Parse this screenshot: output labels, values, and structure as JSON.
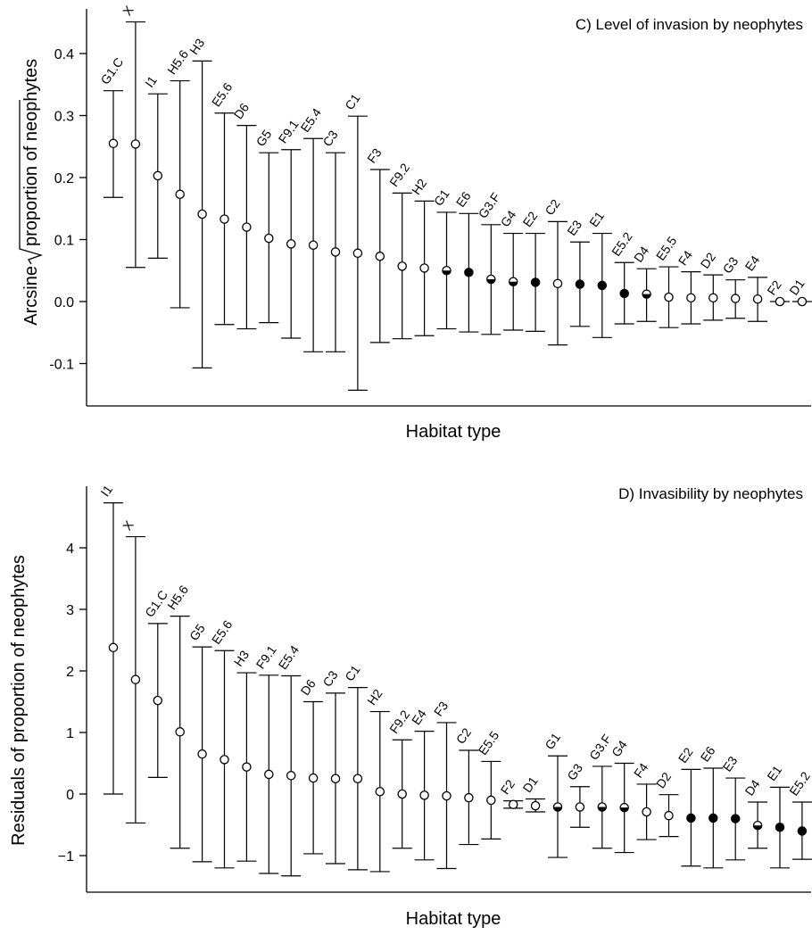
{
  "chart_data": [
    {
      "type": "scatter",
      "title": "C) Level of invasion by neophytes",
      "xlabel": "Habitat type",
      "ylabel_prefix": "Arcsine",
      "ylabel_root": "proportion of neophytes",
      "ylim": [
        -0.16,
        0.48
      ],
      "yticks": [
        0.4,
        0.3,
        0.2,
        0.1,
        0.0,
        -0.1
      ],
      "ytick_labels": [
        "0.4",
        "0.3",
        "0.2",
        "0.1",
        "0.0",
        "-0.1"
      ],
      "grid": false,
      "marker_legend": [
        "open",
        "half",
        "filled"
      ],
      "points": [
        {
          "label": "G1.C",
          "y": 0.255,
          "lo": 0.168,
          "hi": 0.34,
          "marker": "open"
        },
        {
          "label": "X",
          "y": 0.254,
          "lo": 0.055,
          "hi": 0.451,
          "marker": "open"
        },
        {
          "label": "I1",
          "y": 0.203,
          "lo": 0.07,
          "hi": 0.335,
          "marker": "open"
        },
        {
          "label": "H5.6",
          "y": 0.173,
          "lo": -0.01,
          "hi": 0.356,
          "marker": "open"
        },
        {
          "label": "H3",
          "y": 0.141,
          "lo": -0.107,
          "hi": 0.388,
          "marker": "open"
        },
        {
          "label": "E5.6",
          "y": 0.133,
          "lo": -0.037,
          "hi": 0.304,
          "marker": "open"
        },
        {
          "label": "D6",
          "y": 0.12,
          "lo": -0.044,
          "hi": 0.284,
          "marker": "open"
        },
        {
          "label": "G5",
          "y": 0.102,
          "lo": -0.034,
          "hi": 0.24,
          "marker": "open"
        },
        {
          "label": "F9.1",
          "y": 0.093,
          "lo": -0.059,
          "hi": 0.245,
          "marker": "open"
        },
        {
          "label": "E5.4",
          "y": 0.091,
          "lo": -0.081,
          "hi": 0.263,
          "marker": "open"
        },
        {
          "label": "C3",
          "y": 0.08,
          "lo": -0.081,
          "hi": 0.24,
          "marker": "open"
        },
        {
          "label": "C1",
          "y": 0.078,
          "lo": -0.143,
          "hi": 0.299,
          "marker": "open"
        },
        {
          "label": "F3",
          "y": 0.073,
          "lo": -0.066,
          "hi": 0.213,
          "marker": "open"
        },
        {
          "label": "F9.2",
          "y": 0.057,
          "lo": -0.06,
          "hi": 0.175,
          "marker": "open"
        },
        {
          "label": "H2",
          "y": 0.054,
          "lo": -0.055,
          "hi": 0.162,
          "marker": "open"
        },
        {
          "label": "G1",
          "y": 0.05,
          "lo": -0.044,
          "hi": 0.144,
          "marker": "half"
        },
        {
          "label": "E6",
          "y": 0.047,
          "lo": -0.049,
          "hi": 0.142,
          "marker": "filled"
        },
        {
          "label": "G3.F",
          "y": 0.036,
          "lo": -0.053,
          "hi": 0.124,
          "marker": "half"
        },
        {
          "label": "G4",
          "y": 0.032,
          "lo": -0.046,
          "hi": 0.11,
          "marker": "half"
        },
        {
          "label": "E2",
          "y": 0.031,
          "lo": -0.048,
          "hi": 0.11,
          "marker": "filled"
        },
        {
          "label": "C2",
          "y": 0.029,
          "lo": -0.07,
          "hi": 0.129,
          "marker": "open"
        },
        {
          "label": "E3",
          "y": 0.028,
          "lo": -0.04,
          "hi": 0.096,
          "marker": "filled"
        },
        {
          "label": "E1",
          "y": 0.026,
          "lo": -0.058,
          "hi": 0.11,
          "marker": "filled"
        },
        {
          "label": "E5.2",
          "y": 0.013,
          "lo": -0.036,
          "hi": 0.063,
          "marker": "filled"
        },
        {
          "label": "D4",
          "y": 0.012,
          "lo": -0.032,
          "hi": 0.053,
          "marker": "half"
        },
        {
          "label": "E5.5",
          "y": 0.007,
          "lo": -0.042,
          "hi": 0.056,
          "marker": "open"
        },
        {
          "label": "F4",
          "y": 0.006,
          "lo": -0.036,
          "hi": 0.048,
          "marker": "open"
        },
        {
          "label": "D2",
          "y": 0.006,
          "lo": -0.03,
          "hi": 0.043,
          "marker": "open"
        },
        {
          "label": "G3",
          "y": 0.005,
          "lo": -0.027,
          "hi": 0.035,
          "marker": "open"
        },
        {
          "label": "E4",
          "y": 0.004,
          "lo": -0.032,
          "hi": 0.039,
          "marker": "open"
        },
        {
          "label": "F2",
          "y": 0.0,
          "lo": 0.0,
          "hi": 0.0,
          "marker": "open"
        },
        {
          "label": "D1",
          "y": 0.0,
          "lo": 0.0,
          "hi": 0.0,
          "marker": "open"
        }
      ]
    },
    {
      "type": "scatter",
      "title": "D) Invasibility by neophytes",
      "xlabel": "Habitat type",
      "ylabel": "Residuals of proportion of neophytes",
      "ylim": [
        -1.6,
        5.0
      ],
      "yticks": [
        4,
        3,
        2,
        1,
        0,
        -1
      ],
      "ytick_labels": [
        "4",
        "3",
        "2",
        "1",
        "0",
        "−1"
      ],
      "grid": false,
      "points": [
        {
          "label": "I1",
          "y": 2.38,
          "lo": 0.0,
          "hi": 4.73,
          "marker": "open"
        },
        {
          "label": "X",
          "y": 1.86,
          "lo": -0.47,
          "hi": 4.18,
          "marker": "open"
        },
        {
          "label": "G1.C",
          "y": 1.52,
          "lo": 0.27,
          "hi": 2.77,
          "marker": "open"
        },
        {
          "label": "H5.6",
          "y": 1.01,
          "lo": -0.88,
          "hi": 2.89,
          "marker": "open"
        },
        {
          "label": "G5",
          "y": 0.65,
          "lo": -1.1,
          "hi": 2.39,
          "marker": "open"
        },
        {
          "label": "E5.6",
          "y": 0.56,
          "lo": -1.2,
          "hi": 2.33,
          "marker": "open"
        },
        {
          "label": "H3",
          "y": 0.44,
          "lo": -1.09,
          "hi": 1.97,
          "marker": "open"
        },
        {
          "label": "F9.1",
          "y": 0.32,
          "lo": -1.29,
          "hi": 1.93,
          "marker": "open"
        },
        {
          "label": "E5.4",
          "y": 0.3,
          "lo": -1.33,
          "hi": 1.92,
          "marker": "open"
        },
        {
          "label": "D6",
          "y": 0.26,
          "lo": -0.97,
          "hi": 1.5,
          "marker": "open"
        },
        {
          "label": "C3",
          "y": 0.25,
          "lo": -1.13,
          "hi": 1.64,
          "marker": "open"
        },
        {
          "label": "C1",
          "y": 0.25,
          "lo": -1.23,
          "hi": 1.73,
          "marker": "open"
        },
        {
          "label": "H2",
          "y": 0.04,
          "lo": -1.26,
          "hi": 1.34,
          "marker": "open"
        },
        {
          "label": "F9.2",
          "y": 0.0,
          "lo": -0.88,
          "hi": 0.88,
          "marker": "open"
        },
        {
          "label": "E4",
          "y": -0.02,
          "lo": -1.07,
          "hi": 1.02,
          "marker": "open"
        },
        {
          "label": "F3",
          "y": -0.03,
          "lo": -1.21,
          "hi": 1.16,
          "marker": "open"
        },
        {
          "label": "C2",
          "y": -0.06,
          "lo": -0.82,
          "hi": 0.71,
          "marker": "open"
        },
        {
          "label": "E5.5",
          "y": -0.1,
          "lo": -0.73,
          "hi": 0.53,
          "marker": "open"
        },
        {
          "label": "F2",
          "y": -0.17,
          "lo": -0.23,
          "hi": -0.11,
          "marker": "open"
        },
        {
          "label": "D1",
          "y": -0.19,
          "lo": -0.29,
          "hi": -0.08,
          "marker": "open"
        },
        {
          "label": "G1",
          "y": -0.21,
          "lo": -1.03,
          "hi": 0.62,
          "marker": "half"
        },
        {
          "label": "G3",
          "y": -0.21,
          "lo": -0.54,
          "hi": 0.12,
          "marker": "open"
        },
        {
          "label": "G3.F",
          "y": -0.21,
          "lo": -0.88,
          "hi": 0.45,
          "marker": "half"
        },
        {
          "label": "G4",
          "y": -0.22,
          "lo": -0.95,
          "hi": 0.5,
          "marker": "half"
        },
        {
          "label": "F4",
          "y": -0.29,
          "lo": -0.74,
          "hi": 0.16,
          "marker": "open"
        },
        {
          "label": "D2",
          "y": -0.35,
          "lo": -0.69,
          "hi": -0.01,
          "marker": "open"
        },
        {
          "label": "E2",
          "y": -0.39,
          "lo": -1.17,
          "hi": 0.4,
          "marker": "filled"
        },
        {
          "label": "E6",
          "y": -0.39,
          "lo": -1.2,
          "hi": 0.42,
          "marker": "filled"
        },
        {
          "label": "E3",
          "y": -0.4,
          "lo": -1.07,
          "hi": 0.26,
          "marker": "filled"
        },
        {
          "label": "D4",
          "y": -0.51,
          "lo": -0.88,
          "hi": -0.13,
          "marker": "half"
        },
        {
          "label": "E1",
          "y": -0.54,
          "lo": -1.2,
          "hi": 0.11,
          "marker": "filled"
        },
        {
          "label": "E5.2",
          "y": -0.6,
          "lo": -1.06,
          "hi": -0.13,
          "marker": "filled"
        }
      ]
    }
  ]
}
